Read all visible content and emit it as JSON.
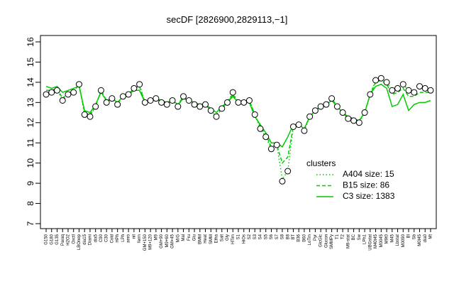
{
  "chart_data": {
    "type": "line",
    "title": "secDF [2826900,2829113,−1]",
    "categories": [
      "G150",
      "G180",
      "G135",
      "Paraq",
      "H2O2",
      "Oxctl",
      "LBOnep",
      "dia15",
      "Diami",
      "dia5",
      "C90",
      "C30",
      "Cold",
      "HPh",
      "LPh",
      "aero",
      "nit",
      "ferm",
      "GM+150",
      "M9+120",
      "M9",
      "GM+90",
      "M9+60",
      "GM+45",
      "M/G",
      "Mal",
      "Fru",
      "Glu",
      "BMM",
      "Heat",
      "SMM",
      "Etha",
      "Salt",
      "Gly",
      "HTim",
      "S1",
      "HiOs",
      "S2",
      "S3",
      "S4",
      "S5",
      "S6",
      "S7",
      "S8",
      "B8",
      "BT",
      "B36",
      "B60",
      "LoTm",
      "Pyr",
      "GlcGlc",
      "Glucon",
      "SMMPy",
      "T1",
      "T2",
      "M9-stat",
      "BC",
      "Sw",
      "LPh1",
      "UBGstat",
      "M40t45",
      "M0045",
      "M9t0",
      "M45",
      "Lbstat",
      "M0090",
      "Bl",
      "Sb",
      "M0t45",
      "dia0",
      "Mt"
    ],
    "values": [
      13.4,
      13.5,
      13.6,
      13.1,
      13.4,
      13.5,
      13.9,
      12.4,
      12.3,
      12.8,
      13.6,
      13.0,
      13.2,
      12.9,
      13.3,
      13.4,
      13.7,
      13.9,
      13.0,
      13.1,
      13.2,
      13.0,
      12.9,
      13.1,
      12.8,
      13.3,
      13.1,
      12.9,
      12.8,
      12.9,
      12.6,
      12.3,
      12.7,
      13.0,
      13.5,
      13.0,
      13.0,
      13.1,
      12.4,
      11.7,
      11.3,
      10.7,
      10.9,
      9.1,
      9.6,
      11.8,
      11.9,
      11.6,
      12.3,
      12.6,
      12.8,
      12.9,
      13.2,
      12.8,
      12.5,
      12.2,
      12.1,
      12.0,
      12.5,
      13.4,
      14.1,
      14.2,
      14.0,
      13.6,
      13.7,
      13.9,
      13.6,
      13.5,
      13.8,
      13.7,
      13.6
    ],
    "point_color": "#000000",
    "legend_title": "clusters",
    "series": [
      {
        "name": "A404 size: 15",
        "color": "#00cc00",
        "line_style": "dotted",
        "values": [
          13.5,
          13.5,
          13.6,
          13.1,
          13.4,
          13.5,
          13.9,
          12.4,
          12.3,
          12.8,
          13.6,
          13.0,
          13.2,
          12.9,
          13.3,
          13.4,
          13.7,
          13.9,
          13.0,
          13.1,
          13.2,
          13.0,
          12.9,
          13.1,
          12.8,
          13.3,
          13.1,
          12.9,
          12.8,
          12.9,
          12.6,
          12.3,
          12.7,
          13.0,
          13.5,
          13.0,
          13.0,
          13.1,
          12.4,
          11.7,
          11.3,
          10.7,
          10.9,
          9.2,
          9.6,
          11.8,
          11.9,
          11.6,
          12.3,
          12.6,
          12.8,
          12.9,
          13.2,
          12.8,
          12.5,
          12.2,
          12.1,
          12.0,
          12.5,
          13.4,
          14.1,
          14.2,
          14.0,
          13.6,
          13.7,
          13.9,
          13.6,
          13.5,
          13.8,
          13.7,
          13.6
        ]
      },
      {
        "name": "B15 size: 86",
        "color": "#00cc00",
        "line_style": "dashed",
        "values": [
          13.6,
          13.6,
          13.7,
          13.2,
          13.5,
          13.6,
          13.9,
          12.5,
          12.4,
          12.8,
          13.6,
          13.1,
          13.2,
          13.0,
          13.3,
          13.4,
          13.7,
          13.8,
          13.0,
          13.1,
          13.2,
          13.0,
          13.0,
          13.1,
          12.9,
          13.3,
          13.1,
          13.0,
          12.8,
          12.9,
          12.6,
          12.4,
          12.7,
          13.0,
          13.4,
          13.0,
          13.0,
          13.1,
          12.4,
          11.8,
          11.4,
          10.8,
          10.9,
          10.0,
          10.3,
          11.8,
          11.9,
          11.7,
          12.3,
          12.6,
          12.8,
          12.9,
          13.2,
          12.8,
          12.5,
          12.2,
          12.1,
          12.1,
          12.5,
          13.4,
          14.0,
          14.1,
          13.9,
          13.4,
          13.5,
          13.7,
          13.3,
          13.3,
          13.5,
          13.5,
          13.5
        ]
      },
      {
        "name": "C3 size: 1383",
        "color": "#00cc00",
        "line_style": "solid",
        "values": [
          13.8,
          13.7,
          13.8,
          13.5,
          13.6,
          13.7,
          13.8,
          12.6,
          12.5,
          12.9,
          13.5,
          13.1,
          13.2,
          13.0,
          13.3,
          13.4,
          13.6,
          13.6,
          13.0,
          13.1,
          13.2,
          13.1,
          13.0,
          13.1,
          12.9,
          13.2,
          13.1,
          13.0,
          12.9,
          12.9,
          12.7,
          12.5,
          12.8,
          13.0,
          13.3,
          13.0,
          13.0,
          13.0,
          12.3,
          11.9,
          11.5,
          11.0,
          11.0,
          10.8,
          11.3,
          11.9,
          11.9,
          11.7,
          12.3,
          12.6,
          12.8,
          12.9,
          13.1,
          12.8,
          12.5,
          12.3,
          12.2,
          12.1,
          12.5,
          13.4,
          13.8,
          13.9,
          13.7,
          12.8,
          12.9,
          13.4,
          12.6,
          12.9,
          13.0,
          13.0,
          13.1
        ]
      }
    ],
    "ylim": [
      7,
      16
    ],
    "yticks": [
      7,
      8,
      9,
      10,
      11,
      12,
      13,
      14,
      15,
      16
    ]
  }
}
